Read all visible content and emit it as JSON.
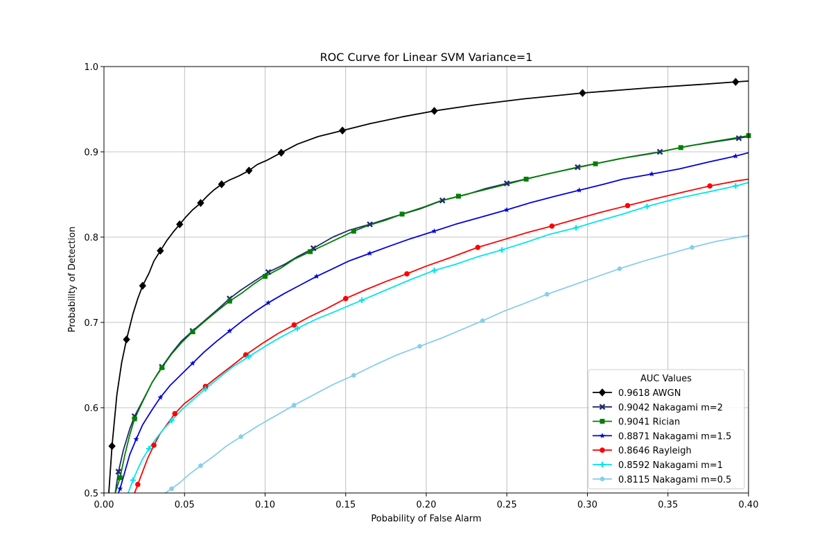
{
  "chart_data": {
    "type": "line",
    "title": "ROC Curve for Linear SVM Variance=1",
    "xlabel": "Pobability of False Alarm",
    "ylabel": "Probability of Detection",
    "xlim": [
      0.0,
      0.4
    ],
    "ylim": [
      0.5,
      1.0
    ],
    "xticks": [
      "0.00",
      "0.05",
      "0.10",
      "0.15",
      "0.20",
      "0.25",
      "0.30",
      "0.35",
      "0.40"
    ],
    "yticks": [
      "0.5",
      "0.6",
      "0.7",
      "0.8",
      "0.9",
      "1.0"
    ],
    "grid": true,
    "legend_title": "AUC Values",
    "legend_position": "lower-right",
    "series": [
      {
        "name": "0.9618 AWGN",
        "color": "#000000",
        "marker": "diamond",
        "x": [
          0.003,
          0.005,
          0.008,
          0.011,
          0.014,
          0.018,
          0.021,
          0.024,
          0.028,
          0.031,
          0.035,
          0.039,
          0.043,
          0.047,
          0.051,
          0.055,
          0.06,
          0.064,
          0.068,
          0.073,
          0.078,
          0.084,
          0.09,
          0.095,
          0.101,
          0.11,
          0.12,
          0.133,
          0.148,
          0.165,
          0.185,
          0.205,
          0.23,
          0.26,
          0.297,
          0.338,
          0.37,
          0.392,
          0.4
        ],
        "y": [
          0.5,
          0.555,
          0.615,
          0.653,
          0.68,
          0.71,
          0.728,
          0.743,
          0.758,
          0.772,
          0.784,
          0.796,
          0.806,
          0.815,
          0.824,
          0.832,
          0.84,
          0.848,
          0.855,
          0.862,
          0.867,
          0.872,
          0.878,
          0.885,
          0.89,
          0.899,
          0.909,
          0.918,
          0.925,
          0.933,
          0.941,
          0.948,
          0.955,
          0.962,
          0.969,
          0.975,
          0.979,
          0.982,
          0.983
        ]
      },
      {
        "name": "0.9042 Nakagami m=2",
        "color": "#1f2a6e",
        "marker": "x",
        "x": [
          0.007,
          0.009,
          0.012,
          0.016,
          0.019,
          0.024,
          0.03,
          0.036,
          0.042,
          0.048,
          0.055,
          0.063,
          0.071,
          0.078,
          0.085,
          0.093,
          0.102,
          0.112,
          0.12,
          0.13,
          0.142,
          0.152,
          0.165,
          0.18,
          0.196,
          0.21,
          0.225,
          0.237,
          0.25,
          0.266,
          0.28,
          0.294,
          0.31,
          0.326,
          0.345,
          0.363,
          0.38,
          0.394,
          0.4
        ],
        "y": [
          0.5,
          0.525,
          0.55,
          0.575,
          0.59,
          0.608,
          0.63,
          0.648,
          0.664,
          0.678,
          0.69,
          0.703,
          0.716,
          0.728,
          0.738,
          0.748,
          0.759,
          0.768,
          0.777,
          0.787,
          0.8,
          0.808,
          0.815,
          0.824,
          0.833,
          0.843,
          0.85,
          0.857,
          0.863,
          0.87,
          0.876,
          0.882,
          0.888,
          0.894,
          0.9,
          0.907,
          0.912,
          0.916,
          0.918
        ]
      },
      {
        "name": "0.9041 Rician",
        "color": "#008000",
        "marker": "square",
        "x": [
          0.007,
          0.01,
          0.013,
          0.016,
          0.019,
          0.024,
          0.03,
          0.036,
          0.042,
          0.048,
          0.055,
          0.063,
          0.07,
          0.078,
          0.086,
          0.093,
          0.1,
          0.11,
          0.118,
          0.128,
          0.136,
          0.145,
          0.155,
          0.163,
          0.175,
          0.185,
          0.198,
          0.208,
          0.22,
          0.235,
          0.25,
          0.262,
          0.275,
          0.29,
          0.305,
          0.32,
          0.34,
          0.358,
          0.375,
          0.391,
          0.4
        ],
        "y": [
          0.5,
          0.518,
          0.545,
          0.568,
          0.587,
          0.607,
          0.63,
          0.647,
          0.663,
          0.676,
          0.689,
          0.702,
          0.713,
          0.725,
          0.735,
          0.745,
          0.754,
          0.764,
          0.774,
          0.783,
          0.79,
          0.798,
          0.807,
          0.813,
          0.82,
          0.827,
          0.835,
          0.842,
          0.848,
          0.855,
          0.862,
          0.868,
          0.874,
          0.88,
          0.886,
          0.892,
          0.898,
          0.905,
          0.911,
          0.916,
          0.919
        ]
      },
      {
        "name": "0.8871 Nakagami m=1.5",
        "color": "#0000dd",
        "marker": "star",
        "x": [
          0.009,
          0.01,
          0.013,
          0.016,
          0.02,
          0.024,
          0.03,
          0.035,
          0.041,
          0.048,
          0.055,
          0.062,
          0.07,
          0.078,
          0.086,
          0.094,
          0.102,
          0.112,
          0.122,
          0.132,
          0.142,
          0.152,
          0.165,
          0.178,
          0.19,
          0.205,
          0.218,
          0.235,
          0.25,
          0.264,
          0.28,
          0.295,
          0.31,
          0.322,
          0.34,
          0.357,
          0.375,
          0.392,
          0.4
        ],
        "y": [
          0.5,
          0.505,
          0.525,
          0.545,
          0.563,
          0.58,
          0.598,
          0.612,
          0.626,
          0.639,
          0.652,
          0.665,
          0.678,
          0.69,
          0.702,
          0.713,
          0.723,
          0.734,
          0.744,
          0.754,
          0.763,
          0.772,
          0.781,
          0.79,
          0.798,
          0.807,
          0.815,
          0.824,
          0.832,
          0.84,
          0.848,
          0.855,
          0.862,
          0.868,
          0.874,
          0.88,
          0.888,
          0.895,
          0.899
        ]
      },
      {
        "name": "0.8646 Rayleigh",
        "color": "#ff0000",
        "marker": "circle",
        "x": [
          0.019,
          0.021,
          0.024,
          0.027,
          0.031,
          0.035,
          0.039,
          0.044,
          0.05,
          0.055,
          0.063,
          0.071,
          0.08,
          0.088,
          0.098,
          0.108,
          0.118,
          0.128,
          0.138,
          0.15,
          0.162,
          0.175,
          0.188,
          0.2,
          0.215,
          0.232,
          0.248,
          0.262,
          0.278,
          0.293,
          0.308,
          0.325,
          0.342,
          0.36,
          0.376,
          0.393,
          0.4
        ],
        "y": [
          0.5,
          0.51,
          0.525,
          0.54,
          0.556,
          0.57,
          0.58,
          0.593,
          0.605,
          0.612,
          0.625,
          0.637,
          0.65,
          0.662,
          0.675,
          0.687,
          0.697,
          0.707,
          0.716,
          0.728,
          0.738,
          0.748,
          0.757,
          0.766,
          0.776,
          0.788,
          0.797,
          0.805,
          0.813,
          0.821,
          0.829,
          0.837,
          0.845,
          0.853,
          0.86,
          0.866,
          0.868
        ]
      },
      {
        "name": "0.8592 Nakagami m=1",
        "color": "#00e5ee",
        "marker": "plus",
        "x": [
          0.015,
          0.018,
          0.021,
          0.024,
          0.028,
          0.032,
          0.037,
          0.042,
          0.048,
          0.055,
          0.063,
          0.072,
          0.08,
          0.09,
          0.1,
          0.11,
          0.12,
          0.132,
          0.145,
          0.16,
          0.175,
          0.19,
          0.205,
          0.218,
          0.232,
          0.247,
          0.262,
          0.276,
          0.293,
          0.307,
          0.322,
          0.337,
          0.355,
          0.375,
          0.392,
          0.4
        ],
        "y": [
          0.5,
          0.515,
          0.528,
          0.54,
          0.552,
          0.563,
          0.575,
          0.585,
          0.597,
          0.609,
          0.622,
          0.636,
          0.648,
          0.66,
          0.672,
          0.683,
          0.693,
          0.704,
          0.714,
          0.726,
          0.738,
          0.75,
          0.761,
          0.768,
          0.777,
          0.785,
          0.794,
          0.803,
          0.811,
          0.819,
          0.827,
          0.836,
          0.845,
          0.853,
          0.86,
          0.864
        ]
      },
      {
        "name": "0.8115 Nakagami m=0.5",
        "color": "#87ceeb",
        "marker": "pentagon",
        "x": [
          0.038,
          0.042,
          0.047,
          0.053,
          0.06,
          0.068,
          0.076,
          0.085,
          0.095,
          0.106,
          0.118,
          0.13,
          0.142,
          0.155,
          0.168,
          0.182,
          0.196,
          0.21,
          0.22,
          0.235,
          0.248,
          0.262,
          0.275,
          0.29,
          0.305,
          0.32,
          0.335,
          0.35,
          0.365,
          0.38,
          0.4
        ],
        "y": [
          0.5,
          0.505,
          0.512,
          0.522,
          0.532,
          0.543,
          0.555,
          0.566,
          0.578,
          0.59,
          0.603,
          0.615,
          0.627,
          0.638,
          0.65,
          0.662,
          0.672,
          0.682,
          0.69,
          0.702,
          0.713,
          0.723,
          0.733,
          0.743,
          0.753,
          0.763,
          0.772,
          0.78,
          0.788,
          0.795,
          0.802
        ]
      }
    ]
  }
}
